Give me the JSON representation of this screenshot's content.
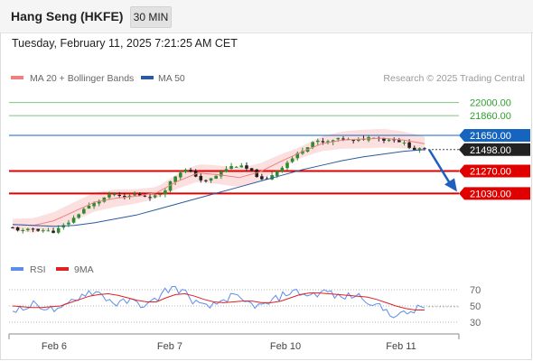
{
  "header": {
    "title": "Hang Seng (HKFE)",
    "timeframe": "30 MIN"
  },
  "datetime": "Tuesday, February 11, 2025 7:21:25 AM CET",
  "legend": {
    "ma20": {
      "label": "MA 20 + Bollinger Bands",
      "color": "#f08080"
    },
    "ma50": {
      "label": "MA 50",
      "color": "#2c5aa0"
    },
    "credit": "Research © 2025 Trading Central"
  },
  "rsi_legend": {
    "rsi": {
      "label": "RSI",
      "color": "#5b8def"
    },
    "ma9": {
      "label": "9MA",
      "color": "#e02020"
    }
  },
  "chart_data": [
    {
      "type": "candlestick",
      "title": "Hang Seng (HKFE)",
      "x_labels": [
        "Feb 6",
        "Feb 7",
        "Feb 10",
        "Feb 11"
      ],
      "y_range": [
        20380,
        22150
      ],
      "levels": [
        {
          "value": 22000.0,
          "label": "22000.00",
          "kind": "resistance",
          "color": "#2e9e2e"
        },
        {
          "value": 21860.0,
          "label": "21860.00",
          "kind": "resistance",
          "color": "#2e9e2e"
        },
        {
          "value": 21650.0,
          "label": "21650.00",
          "kind": "pivot",
          "color": "#1565c0"
        },
        {
          "value": 21498.0,
          "label": "21498.00",
          "kind": "last",
          "color": "#111111"
        },
        {
          "value": 21270.0,
          "label": "21270.00",
          "kind": "support",
          "color": "#e00000"
        },
        {
          "value": 21030.0,
          "label": "21030.00",
          "kind": "support",
          "color": "#e00000"
        }
      ],
      "close_path": [
        20660,
        20630,
        20650,
        20640,
        20620,
        20680,
        20760,
        20860,
        20920,
        20980,
        21030,
        20980,
        21020,
        21010,
        20990,
        21050,
        21200,
        21290,
        21240,
        21150,
        21200,
        21280,
        21330,
        21310,
        21250,
        21150,
        21250,
        21330,
        21420,
        21510,
        21590,
        21570,
        21600,
        21620,
        21580,
        21620,
        21640,
        21600,
        21610,
        21560,
        21500,
        21498
      ],
      "ma50": [
        20700,
        20690,
        20680,
        20690,
        20720,
        20760,
        20800,
        20860,
        20920,
        20980,
        21040,
        21100,
        21160,
        21220,
        21280,
        21330,
        21380,
        21420,
        21450,
        21480,
        21498
      ],
      "ma20": [
        20700,
        20690,
        20740,
        20840,
        20940,
        20980,
        21000,
        21040,
        21160,
        21250,
        21230,
        21200,
        21260,
        21370,
        21470,
        21560,
        21600,
        21610,
        21620,
        21600,
        21560
      ],
      "forecast": {
        "from": 21498,
        "to": 21030
      }
    },
    {
      "type": "line",
      "title": "RSI",
      "y_range": [
        20,
        80
      ],
      "y_ticks": [
        70,
        50,
        30
      ],
      "series": [
        {
          "name": "RSI",
          "values": [
            48,
            45,
            52,
            50,
            46,
            43,
            55,
            62,
            68,
            66,
            58,
            52,
            56,
            54,
            50,
            58,
            70,
            72,
            66,
            55,
            48,
            50,
            58,
            62,
            55,
            52,
            49,
            55,
            62,
            68,
            66,
            63,
            66,
            68,
            60,
            62,
            63,
            58,
            50,
            44,
            38,
            40,
            45,
            49
          ]
        },
        {
          "name": "9MA",
          "values": [
            50,
            49,
            48,
            48,
            49,
            50,
            54,
            58,
            62,
            64,
            65,
            63,
            60,
            57,
            55,
            55,
            60,
            64,
            65,
            62,
            58,
            55,
            54,
            55,
            56,
            56,
            54,
            54,
            56,
            60,
            64,
            66,
            66,
            65,
            64,
            63,
            62,
            61,
            58,
            54,
            50,
            47,
            45,
            45
          ]
        }
      ]
    }
  ]
}
